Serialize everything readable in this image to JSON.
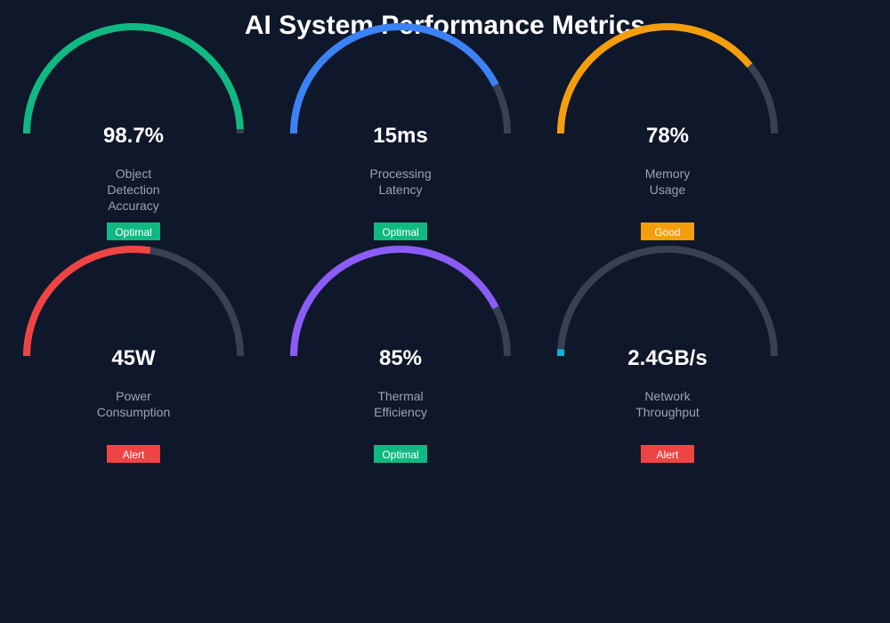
{
  "title": "AI System Performance Metrics",
  "colors": {
    "background": "#0f172a",
    "track": "#374151",
    "Optimal": "#10b981",
    "Good": "#f59e0b",
    "Alert": "#ef4444"
  },
  "gauges": [
    {
      "value": "98.7%",
      "label": [
        "Object",
        "Detection",
        "Accuracy"
      ],
      "status": "Optimal",
      "fill": 0.987,
      "color": "#10b981"
    },
    {
      "value": "15ms",
      "label": [
        "Processing",
        "Latency"
      ],
      "status": "Optimal",
      "fill": 0.85,
      "color": "#3b82f6"
    },
    {
      "value": "78%",
      "label": [
        "Memory",
        "Usage"
      ],
      "status": "Good",
      "fill": 0.78,
      "color": "#f59e0b"
    },
    {
      "value": "45W",
      "label": [
        "Power",
        "Consumption"
      ],
      "status": "Alert",
      "fill": 0.55,
      "color": "#ef4444"
    },
    {
      "value": "85%",
      "label": [
        "Thermal",
        "Efficiency"
      ],
      "status": "Optimal",
      "fill": 0.85,
      "color": "#8b5cf6"
    },
    {
      "value": "2.4GB/s",
      "label": [
        "Network",
        "Throughput"
      ],
      "status": "Alert",
      "fill": 0.02,
      "color": "#06b6d4"
    }
  ]
}
